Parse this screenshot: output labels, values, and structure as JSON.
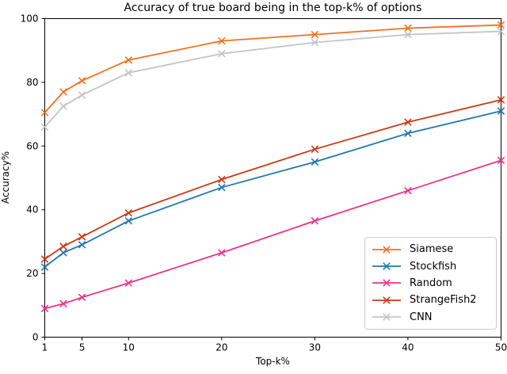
{
  "chart_data": {
    "type": "line",
    "title": "Accuracy of true board being in the top-k% of options",
    "xlabel": "Top-k%",
    "ylabel": "Accuracy%",
    "xlim": [
      1,
      50
    ],
    "ylim": [
      0,
      100
    ],
    "xticks": [
      1,
      5,
      10,
      20,
      30,
      40,
      50
    ],
    "yticks": [
      0,
      20,
      40,
      60,
      80,
      100
    ],
    "grid": false,
    "legend_position": "lower right",
    "marker": "x",
    "x": [
      1,
      3,
      5,
      10,
      20,
      30,
      40,
      50
    ],
    "series": [
      {
        "name": "Siamese",
        "color": "#f6701f",
        "values": [
          70.5,
          77,
          80.5,
          87,
          93,
          95,
          97,
          98
        ]
      },
      {
        "name": "Stockfish",
        "color": "#1f77b4",
        "values": [
          22,
          26.5,
          29,
          36.5,
          47,
          55,
          64,
          71
        ]
      },
      {
        "name": "Random",
        "color": "#ee3387",
        "values": [
          9,
          10.5,
          12.5,
          17,
          26.5,
          36.5,
          46,
          55.5
        ]
      },
      {
        "name": "StrangeFish2",
        "color": "#cc3814",
        "values": [
          24.5,
          28.5,
          31.5,
          39,
          49.5,
          59,
          67.5,
          74.5
        ]
      },
      {
        "name": "CNN",
        "color": "#c4c4c4",
        "values": [
          66,
          72.5,
          76,
          83,
          89,
          92.5,
          95,
          96
        ]
      }
    ],
    "axis_color": "#000000",
    "tick_font_px": 12
  }
}
